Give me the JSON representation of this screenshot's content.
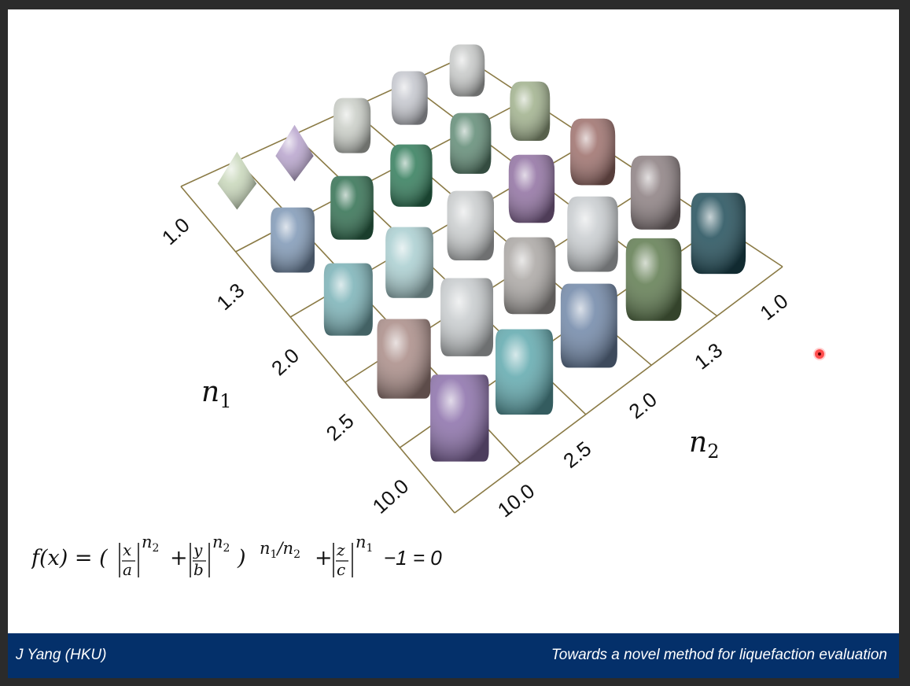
{
  "footer": {
    "author": "J Yang (HKU)",
    "talk_title": "Towards a novel method for liquefaction evaluation"
  },
  "figure": {
    "axis_n1": {
      "symbol": "n",
      "subscript": "1",
      "ticks": [
        "1.0",
        "1.3",
        "2.0",
        "2.5",
        "10.0"
      ]
    },
    "axis_n2": {
      "symbol": "n",
      "subscript": "2",
      "ticks": [
        "1.0",
        "1.3",
        "2.0",
        "2.5",
        "10.0"
      ]
    },
    "shape_colors": [
      [
        "#c7d6b9",
        "#b7a3cc",
        "#c9cdc6",
        "#c4c6cd",
        "#c6c8c7"
      ],
      [
        "#7e97b5",
        "#2f6e4f",
        "#2f7a58",
        "#5f8a74",
        "#9fb08b"
      ],
      [
        "#79b1b6",
        "#a9ced0",
        "#c9cccd",
        "#8f6fa0",
        "#9c6e6a"
      ],
      [
        "#a98b86",
        "#c7cbcd",
        "#aaa6a3",
        "#c8cccf",
        "#8b7e80"
      ],
      [
        "#8a6ea9",
        "#5fa8ad",
        "#6f86a7",
        "#5e7a4e",
        "#1f4c58"
      ]
    ]
  },
  "formula": {
    "lhs": "f(x) = (",
    "x": "x",
    "a": "a",
    "y": "y",
    "b": "b",
    "z": "z",
    "c": "c",
    "exp_n2": "n",
    "exp_n2_sub": "2",
    "exp_n1": "n",
    "exp_n1_sub": "1",
    "plus": "+",
    "close_paren": ")",
    "power_num": "n",
    "power_num_sub": "1",
    "power_den": "n",
    "power_den_sub": "2",
    "tail": "−1 = 0"
  },
  "pointer": {
    "icon": "laser-pointer-icon"
  }
}
